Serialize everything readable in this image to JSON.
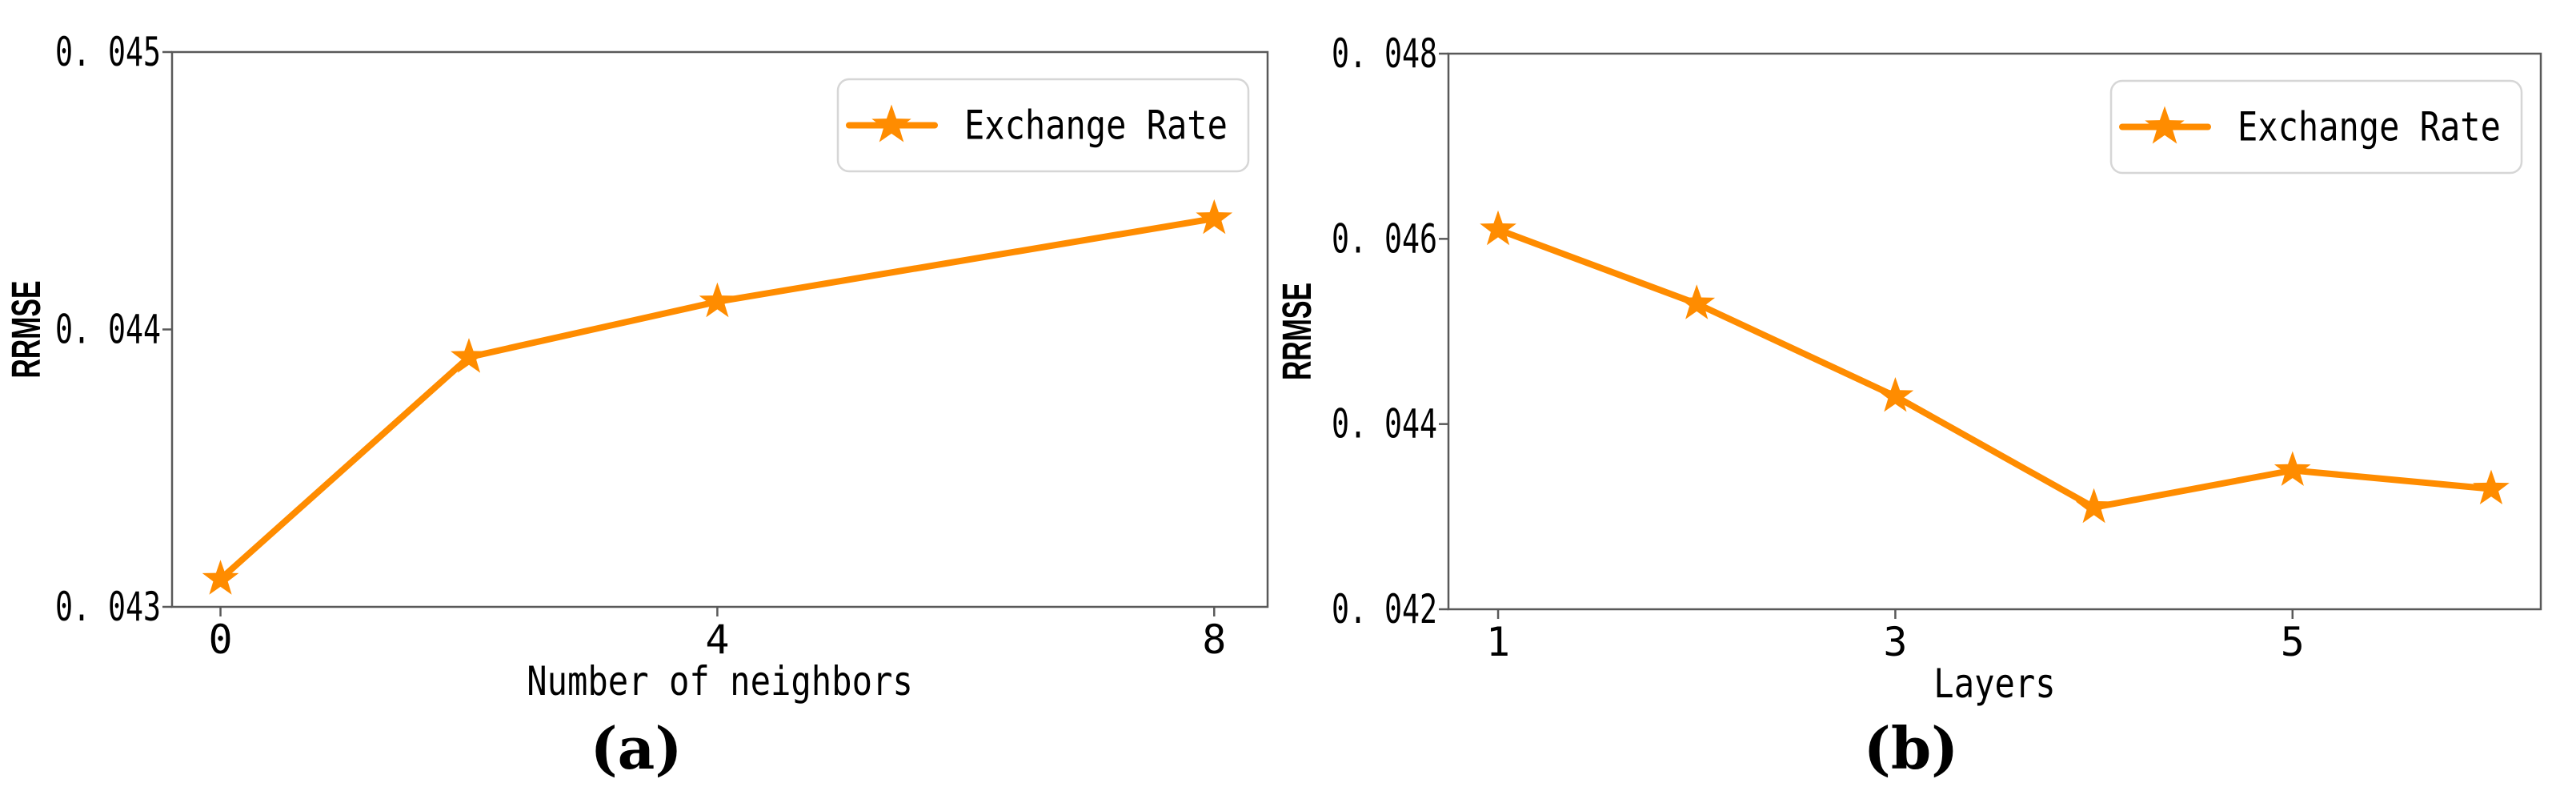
{
  "figure": {
    "caption_a": "(a)",
    "caption_b": "(b)"
  },
  "style": {
    "background": "#ffffff",
    "accent": "#FF8C00",
    "spine_color": "#595959",
    "tick_color": "#595959",
    "text_color": "#000000",
    "legend_border": "#d6d6d6",
    "legend_bg": "#ffffff"
  },
  "chart_data": [
    {
      "type": "line",
      "title": "",
      "caption": "(a)",
      "xlabel": "Number of neighbors",
      "ylabel": "RRMSE",
      "grid": false,
      "legend": {
        "label": "Exchange Rate",
        "marker": "star-icon",
        "position": "upper-right"
      },
      "series": [
        {
          "name": "Exchange Rate",
          "x": [
            0,
            2,
            4,
            8
          ],
          "values": [
            0.0431,
            0.0439,
            0.0441,
            0.0444
          ]
        }
      ],
      "xlim": [
        -0.39,
        8.43
      ],
      "ylim": [
        0.043,
        0.045
      ],
      "xticks": {
        "values": [
          0,
          4,
          8
        ],
        "labels": [
          "0",
          "4",
          "8"
        ]
      },
      "yticks": {
        "values": [
          0.043,
          0.044,
          0.045
        ],
        "labels": [
          "0. 043",
          "0. 044",
          "0. 045"
        ]
      }
    },
    {
      "type": "line",
      "title": "",
      "caption": "(b)",
      "xlabel": "Layers",
      "ylabel": "RRMSE",
      "grid": false,
      "legend": {
        "label": "Exchange Rate",
        "marker": "star-icon",
        "position": "upper-right"
      },
      "series": [
        {
          "name": "Exchange Rate",
          "x": [
            1,
            2,
            3,
            4,
            5,
            6
          ],
          "values": [
            0.0461,
            0.0453,
            0.0443,
            0.0431,
            0.0435,
            0.0433
          ]
        }
      ],
      "xlim": [
        0.75,
        6.25
      ],
      "ylim": [
        0.042,
        0.048
      ],
      "xticks": {
        "values": [
          1,
          3,
          5
        ],
        "labels": [
          "1",
          "3",
          "5"
        ]
      },
      "yticks": {
        "values": [
          0.042,
          0.044,
          0.046,
          0.048
        ],
        "labels": [
          "0. 042",
          "0. 044",
          "0. 046",
          "0. 048"
        ]
      }
    }
  ]
}
